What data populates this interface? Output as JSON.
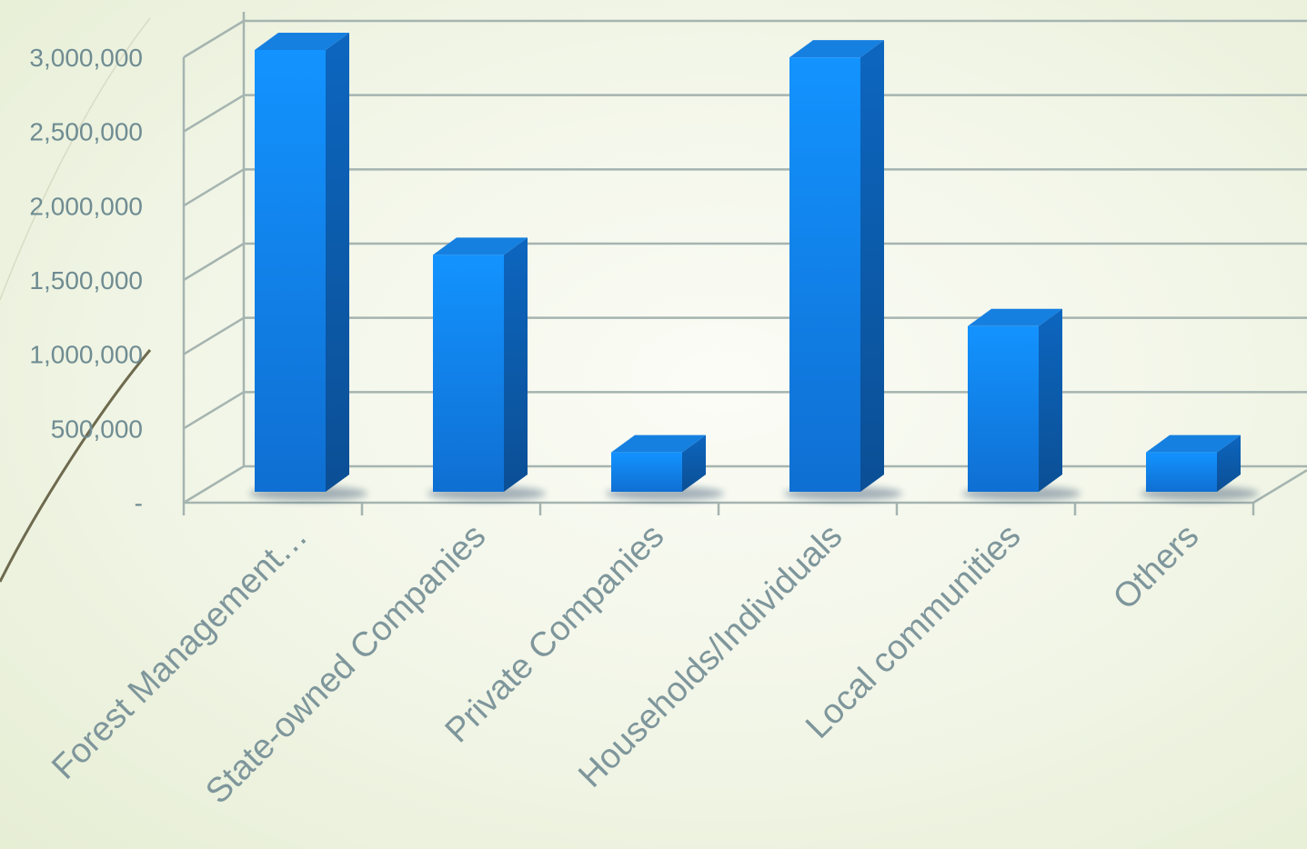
{
  "chart_data": {
    "type": "bar",
    "categories": [
      "Forest Management…",
      "State-owned Companies",
      "Private Companies",
      "Households/Individuals",
      "Local communities",
      "Others"
    ],
    "values": [
      3000000,
      1620000,
      290000,
      2950000,
      1140000,
      290000
    ],
    "ylim": [
      0,
      3000000
    ],
    "y_ticks": [
      0,
      500000,
      1000000,
      1500000,
      2000000,
      2500000,
      3000000
    ],
    "y_tick_labels": [
      "-",
      "500,000",
      "1,000,000",
      "1,500,000",
      "2,000,000",
      "2,500,000",
      "3,000,000"
    ],
    "grid": true,
    "style": "3d-column",
    "colors": {
      "bar_front_top": "#1393ff",
      "bar_front_bottom": "#0f72d6",
      "bar_side": "#0d5cae",
      "bar_top": "#1680e0",
      "grid": "#a5b4b0",
      "text": "#6f8c92"
    }
  }
}
